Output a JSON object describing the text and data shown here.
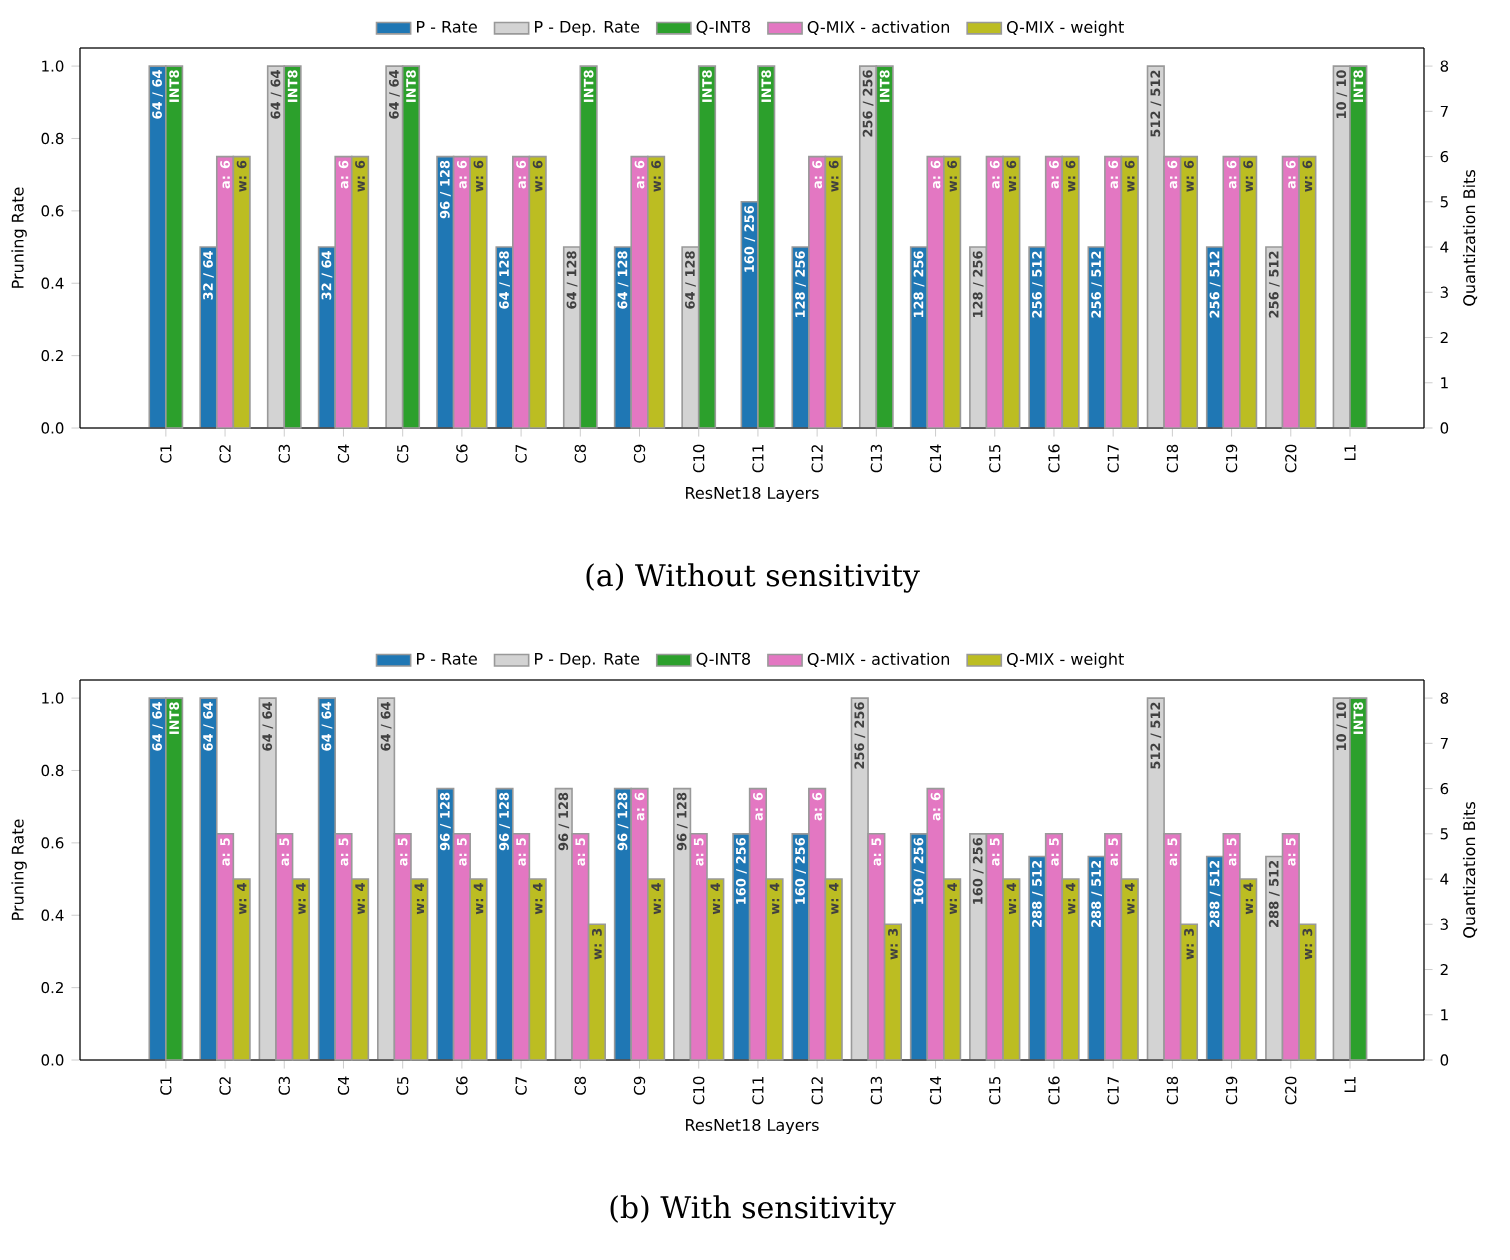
{
  "chart_data": [
    {
      "type": "bar",
      "title": "(a) Without sensitivity",
      "xlabel": "ResNet18 Layers",
      "ylabel": "Pruning Rate",
      "y2label": "Quantization Bits",
      "legend": "top",
      "categories": [
        "C1",
        "C2",
        "C3",
        "C4",
        "C5",
        "C6",
        "C7",
        "C8",
        "C9",
        "C10",
        "C11",
        "C12",
        "C13",
        "C14",
        "C15",
        "C16",
        "C17",
        "C18",
        "C19",
        "C20",
        "L1"
      ],
      "ylim": [
        0,
        1.05
      ],
      "yticks": [
        {
          "value": 0,
          "label": "0.0"
        },
        {
          "value": 0.2,
          "label": "0.2"
        },
        {
          "value": 0.4,
          "label": "0.4"
        },
        {
          "value": 0.6,
          "label": "0.6"
        },
        {
          "value": 0.8,
          "label": "0.8"
        },
        {
          "value": 1,
          "label": "1.0"
        }
      ],
      "y2lim": [
        0,
        8.4
      ],
      "y2ticks": [
        0,
        1,
        2,
        3,
        4,
        5,
        6,
        7,
        8
      ],
      "series": [
        {
          "name": "P - Rate",
          "color": "#1f77b4",
          "values": [
            1.0,
            0.5,
            null,
            0.5,
            null,
            0.75,
            0.5,
            null,
            0.5,
            null,
            0.625,
            0.5,
            null,
            0.5,
            null,
            0.5,
            0.5,
            null,
            0.5,
            null,
            null
          ]
        },
        {
          "name": "P - Dep. Rate",
          "color": "#d3d3d3",
          "values": [
            null,
            null,
            1.0,
            null,
            1.0,
            null,
            null,
            0.5,
            null,
            0.5,
            null,
            null,
            1.0,
            null,
            0.5,
            null,
            null,
            1.0,
            null,
            0.5,
            1.0
          ]
        },
        {
          "name": "Q-INT8",
          "color": "#2ca02c",
          "axis": "y2",
          "values": [
            8,
            null,
            8,
            null,
            8,
            null,
            null,
            8,
            null,
            8,
            8,
            null,
            8,
            null,
            null,
            null,
            null,
            null,
            null,
            null,
            8
          ],
          "value_labels": [
            "INT8",
            null,
            "INT8",
            null,
            "INT8",
            null,
            null,
            "INT8",
            null,
            "INT8",
            "INT8",
            null,
            "INT8",
            null,
            null,
            null,
            null,
            null,
            null,
            null,
            "INT8"
          ]
        },
        {
          "name": "Q-MIX - activation",
          "color": "#e377c2",
          "axis": "y2",
          "values": [
            null,
            6,
            null,
            6,
            null,
            6,
            6,
            null,
            6,
            null,
            null,
            6,
            null,
            6,
            6,
            6,
            6,
            6,
            6,
            6,
            null
          ],
          "value_labels": [
            null,
            "a: 6",
            null,
            "a: 6",
            null,
            "a: 6",
            "a: 6",
            null,
            "a: 6",
            null,
            null,
            "a: 6",
            null,
            "a: 6",
            "a: 6",
            "a: 6",
            "a: 6",
            "a: 6",
            "a: 6",
            "a: 6",
            null
          ]
        },
        {
          "name": "Q-MIX - weight",
          "color": "#bcbd22",
          "axis": "y2",
          "values": [
            null,
            6,
            null,
            6,
            null,
            6,
            6,
            null,
            6,
            null,
            null,
            6,
            null,
            6,
            6,
            6,
            6,
            6,
            6,
            6,
            null
          ],
          "value_labels": [
            null,
            "w: 6",
            null,
            "w: 6",
            null,
            "w: 6",
            "w: 6",
            null,
            "w: 6",
            null,
            null,
            "w: 6",
            null,
            "w: 6",
            "w: 6",
            "w: 6",
            "w: 6",
            "w: 6",
            "w: 6",
            "w: 6",
            null
          ]
        }
      ],
      "annotations": [
        {
          "text": "64 / 64",
          "x": "C1",
          "y": 1.0
        },
        {
          "text": "32 / 64",
          "x": "C2",
          "y": 0.5
        },
        {
          "text": "64 / 64",
          "x": "C3",
          "y": 1.0
        },
        {
          "text": "32 / 64",
          "x": "C4",
          "y": 0.5
        },
        {
          "text": "64 / 64",
          "x": "C5",
          "y": 1.0
        },
        {
          "text": "96 / 128",
          "x": "C6",
          "y": 0.75
        },
        {
          "text": "64 / 128",
          "x": "C7",
          "y": 0.5
        },
        {
          "text": "64 / 128",
          "x": "C8",
          "y": 0.5
        },
        {
          "text": "64 / 128",
          "x": "C9",
          "y": 0.5
        },
        {
          "text": "64 / 128",
          "x": "C10",
          "y": 0.5
        },
        {
          "text": "160 / 256",
          "x": "C11",
          "y": 0.625
        },
        {
          "text": "128 / 256",
          "x": "C12",
          "y": 0.5
        },
        {
          "text": "256 / 256",
          "x": "C13",
          "y": 1.0
        },
        {
          "text": "128 / 256",
          "x": "C14",
          "y": 0.5
        },
        {
          "text": "128 / 256",
          "x": "C15",
          "y": 0.5
        },
        {
          "text": "256 / 512",
          "x": "C16",
          "y": 0.5
        },
        {
          "text": "256 / 512",
          "x": "C17",
          "y": 0.5
        },
        {
          "text": "512 / 512",
          "x": "C18",
          "y": 1.0
        },
        {
          "text": "256 / 512",
          "x": "C19",
          "y": 0.5
        },
        {
          "text": "256 / 512",
          "x": "C20",
          "y": 0.5
        },
        {
          "text": "10 / 10",
          "x": "L1",
          "y": 1.0
        }
      ]
    },
    {
      "type": "bar",
      "title": "(b) With sensitivity",
      "xlabel": "ResNet18 Layers",
      "ylabel": "Pruning Rate",
      "y2label": "Quantization Bits",
      "legend": "top",
      "categories": [
        "C1",
        "C2",
        "C3",
        "C4",
        "C5",
        "C6",
        "C7",
        "C8",
        "C9",
        "C10",
        "C11",
        "C12",
        "C13",
        "C14",
        "C15",
        "C16",
        "C17",
        "C18",
        "C19",
        "C20",
        "L1"
      ],
      "ylim": [
        0,
        1.05
      ],
      "yticks": [
        {
          "value": 0,
          "label": "0.0"
        },
        {
          "value": 0.2,
          "label": "0.2"
        },
        {
          "value": 0.4,
          "label": "0.4"
        },
        {
          "value": 0.6,
          "label": "0.6"
        },
        {
          "value": 0.8,
          "label": "0.8"
        },
        {
          "value": 1,
          "label": "1.0"
        }
      ],
      "y2lim": [
        0,
        8.4
      ],
      "y2ticks": [
        0,
        1,
        2,
        3,
        4,
        5,
        6,
        7,
        8
      ],
      "series": [
        {
          "name": "P - Rate",
          "color": "#1f77b4",
          "values": [
            1.0,
            1.0,
            null,
            1.0,
            null,
            0.75,
            0.75,
            null,
            0.75,
            null,
            0.625,
            0.625,
            null,
            0.625,
            null,
            0.5625,
            0.5625,
            null,
            0.5625,
            null,
            null
          ]
        },
        {
          "name": "P - Dep. Rate",
          "color": "#d3d3d3",
          "values": [
            null,
            null,
            1.0,
            null,
            1.0,
            null,
            null,
            0.75,
            null,
            0.75,
            null,
            null,
            1.0,
            null,
            0.625,
            null,
            null,
            1.0,
            null,
            0.5625,
            1.0
          ]
        },
        {
          "name": "Q-INT8",
          "color": "#2ca02c",
          "axis": "y2",
          "values": [
            8,
            null,
            null,
            null,
            null,
            null,
            null,
            null,
            null,
            null,
            null,
            null,
            null,
            null,
            null,
            null,
            null,
            null,
            null,
            null,
            8
          ],
          "value_labels": [
            "INT8",
            null,
            null,
            null,
            null,
            null,
            null,
            null,
            null,
            null,
            null,
            null,
            null,
            null,
            null,
            null,
            null,
            null,
            null,
            null,
            "INT8"
          ]
        },
        {
          "name": "Q-MIX - activation",
          "color": "#e377c2",
          "axis": "y2",
          "values": [
            null,
            5,
            5,
            5,
            5,
            5,
            5,
            5,
            6,
            5,
            6,
            6,
            5,
            6,
            5,
            5,
            5,
            5,
            5,
            5,
            null
          ],
          "value_labels": [
            null,
            "a: 5",
            "a: 5",
            "a: 5",
            "a: 5",
            "a: 5",
            "a: 5",
            "a: 5",
            "a: 6",
            "a: 5",
            "a: 6",
            "a: 6",
            "a: 5",
            "a: 6",
            "a: 5",
            "a: 5",
            "a: 5",
            "a: 5",
            "a: 5",
            "a: 5",
            null
          ]
        },
        {
          "name": "Q-MIX - weight",
          "color": "#bcbd22",
          "axis": "y2",
          "values": [
            null,
            4,
            4,
            4,
            4,
            4,
            4,
            3,
            4,
            4,
            4,
            4,
            3,
            4,
            4,
            4,
            4,
            3,
            4,
            3,
            null
          ],
          "value_labels": [
            null,
            "w: 4",
            "w: 4",
            "w: 4",
            "w: 4",
            "w: 4",
            "w: 4",
            "w: 3",
            "w: 4",
            "w: 4",
            "w: 4",
            "w: 4",
            "w: 3",
            "w: 4",
            "w: 4",
            "w: 4",
            "w: 4",
            "w: 3",
            "w: 4",
            "w: 3",
            null
          ]
        }
      ],
      "annotations": [
        {
          "text": "64 / 64",
          "x": "C1",
          "y": 1.0
        },
        {
          "text": "64 / 64",
          "x": "C2",
          "y": 1.0
        },
        {
          "text": "64 / 64",
          "x": "C3",
          "y": 1.0
        },
        {
          "text": "64 / 64",
          "x": "C4",
          "y": 1.0
        },
        {
          "text": "64 / 64",
          "x": "C5",
          "y": 1.0
        },
        {
          "text": "96 / 128",
          "x": "C6",
          "y": 0.75
        },
        {
          "text": "96 / 128",
          "x": "C7",
          "y": 0.75
        },
        {
          "text": "96 / 128",
          "x": "C8",
          "y": 0.75
        },
        {
          "text": "96 / 128",
          "x": "C9",
          "y": 0.75
        },
        {
          "text": "96 / 128",
          "x": "C10",
          "y": 0.75
        },
        {
          "text": "160 / 256",
          "x": "C11",
          "y": 0.625
        },
        {
          "text": "160 / 256",
          "x": "C12",
          "y": 0.625
        },
        {
          "text": "256 / 256",
          "x": "C13",
          "y": 1.0
        },
        {
          "text": "160 / 256",
          "x": "C14",
          "y": 0.625
        },
        {
          "text": "160 / 256",
          "x": "C15",
          "y": 0.625
        },
        {
          "text": "288 / 512",
          "x": "C16",
          "y": 0.5625
        },
        {
          "text": "288 / 512",
          "x": "C17",
          "y": 0.5625
        },
        {
          "text": "512 / 512",
          "x": "C18",
          "y": 1.0
        },
        {
          "text": "288 / 512",
          "x": "C19",
          "y": 0.5625
        },
        {
          "text": "288 / 512",
          "x": "C20",
          "y": 0.5625
        },
        {
          "text": "10 / 10",
          "x": "L1",
          "y": 1.0
        }
      ]
    }
  ]
}
